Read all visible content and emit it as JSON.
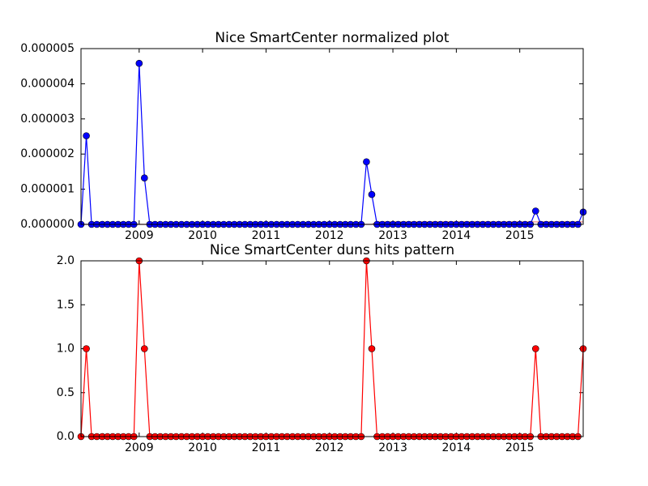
{
  "chart_data": [
    {
      "type": "line",
      "title": "Nice SmartCenter normalized plot",
      "x": [
        2008.083,
        2008.167,
        2008.25,
        2008.333,
        2008.417,
        2008.5,
        2008.583,
        2008.667,
        2008.75,
        2008.833,
        2008.917,
        2009.0,
        2009.083,
        2009.167,
        2009.25,
        2009.333,
        2009.417,
        2009.5,
        2009.583,
        2009.667,
        2009.75,
        2009.833,
        2009.917,
        2010.0,
        2010.083,
        2010.167,
        2010.25,
        2010.333,
        2010.417,
        2010.5,
        2010.583,
        2010.667,
        2010.75,
        2010.833,
        2010.917,
        2011.0,
        2011.083,
        2011.167,
        2011.25,
        2011.333,
        2011.417,
        2011.5,
        2011.583,
        2011.667,
        2011.75,
        2011.833,
        2011.917,
        2012.0,
        2012.083,
        2012.167,
        2012.25,
        2012.333,
        2012.417,
        2012.5,
        2012.583,
        2012.667,
        2012.75,
        2012.833,
        2012.917,
        2013.0,
        2013.083,
        2013.167,
        2013.25,
        2013.333,
        2013.417,
        2013.5,
        2013.583,
        2013.667,
        2013.75,
        2013.833,
        2013.917,
        2014.0,
        2014.083,
        2014.167,
        2014.25,
        2014.333,
        2014.417,
        2014.5,
        2014.583,
        2014.667,
        2014.75,
        2014.833,
        2014.917,
        2015.0,
        2015.083,
        2015.167,
        2015.25,
        2015.333,
        2015.417,
        2015.5,
        2015.583,
        2015.667,
        2015.75,
        2015.833,
        2015.917,
        2016.0
      ],
      "series": [
        {
          "color": "#e87a7a",
          "marker": false,
          "values": [
            0,
            0,
            0,
            0,
            0,
            0,
            0,
            0,
            0,
            0,
            0,
            0,
            0,
            0,
            0,
            0,
            0,
            0,
            0,
            0,
            0,
            0,
            0,
            0,
            0,
            0,
            0,
            0,
            0,
            0,
            0,
            0,
            0,
            0,
            0,
            0,
            0,
            0,
            0,
            0,
            0,
            0,
            0,
            0,
            0,
            0,
            0,
            0,
            0,
            0,
            0,
            0,
            0,
            0,
            0,
            0,
            7e-08,
            7e-08,
            7e-08,
            7e-08,
            7e-08,
            7e-08,
            7e-08,
            7e-08,
            7e-08,
            7e-08,
            7e-08,
            7e-08,
            7e-08,
            7e-08,
            7e-08,
            7e-08,
            7e-08,
            7e-08,
            7e-08,
            7e-08,
            7e-08,
            7e-08,
            7e-08,
            7e-08,
            7e-08,
            7e-08,
            7e-08,
            7e-08,
            7e-08,
            7e-08,
            7e-08,
            7e-08,
            7e-08,
            7e-08,
            7e-08,
            7e-08,
            7e-08,
            7e-08,
            7e-08,
            7e-08
          ]
        },
        {
          "color": "#0000ff",
          "marker": true,
          "values": [
            0,
            2.52e-06,
            0,
            0,
            0,
            0,
            0,
            0,
            0,
            0,
            0,
            4.58e-06,
            1.32e-06,
            0,
            0,
            0,
            0,
            0,
            0,
            0,
            0,
            0,
            0,
            0,
            0,
            0,
            0,
            0,
            0,
            0,
            0,
            0,
            0,
            0,
            0,
            0,
            0,
            0,
            0,
            0,
            0,
            0,
            0,
            0,
            0,
            0,
            0,
            0,
            0,
            0,
            0,
            0,
            0,
            0,
            1.78e-06,
            8.5e-07,
            0,
            0,
            0,
            0,
            0,
            0,
            0,
            0,
            0,
            0,
            0,
            0,
            0,
            0,
            0,
            0,
            0,
            0,
            0,
            0,
            0,
            0,
            0,
            0,
            0,
            0,
            0,
            0,
            0,
            0,
            3.8e-07,
            0,
            0,
            0,
            0,
            0,
            0,
            0,
            0,
            3.5e-07
          ]
        }
      ],
      "xlim": [
        2008.083,
        2016.0
      ],
      "xticks": [
        2009,
        2010,
        2011,
        2012,
        2013,
        2014,
        2015
      ],
      "ylim": [
        0,
        5e-06
      ],
      "yticks": [
        {
          "value": 0,
          "label": "0.000000"
        },
        {
          "value": 1e-06,
          "label": "0.000001"
        },
        {
          "value": 2e-06,
          "label": "0.000002"
        },
        {
          "value": 3e-06,
          "label": "0.000003"
        },
        {
          "value": 4e-06,
          "label": "0.000004"
        },
        {
          "value": 5e-06,
          "label": "0.000005"
        }
      ]
    },
    {
      "type": "line",
      "title": "Nice SmartCenter duns hits pattern",
      "x": [
        2008.083,
        2008.167,
        2008.25,
        2008.333,
        2008.417,
        2008.5,
        2008.583,
        2008.667,
        2008.75,
        2008.833,
        2008.917,
        2009.0,
        2009.083,
        2009.167,
        2009.25,
        2009.333,
        2009.417,
        2009.5,
        2009.583,
        2009.667,
        2009.75,
        2009.833,
        2009.917,
        2010.0,
        2010.083,
        2010.167,
        2010.25,
        2010.333,
        2010.417,
        2010.5,
        2010.583,
        2010.667,
        2010.75,
        2010.833,
        2010.917,
        2011.0,
        2011.083,
        2011.167,
        2011.25,
        2011.333,
        2011.417,
        2011.5,
        2011.583,
        2011.667,
        2011.75,
        2011.833,
        2011.917,
        2012.0,
        2012.083,
        2012.167,
        2012.25,
        2012.333,
        2012.417,
        2012.5,
        2012.583,
        2012.667,
        2012.75,
        2012.833,
        2012.917,
        2013.0,
        2013.083,
        2013.167,
        2013.25,
        2013.333,
        2013.417,
        2013.5,
        2013.583,
        2013.667,
        2013.75,
        2013.833,
        2013.917,
        2014.0,
        2014.083,
        2014.167,
        2014.25,
        2014.333,
        2014.417,
        2014.5,
        2014.583,
        2014.667,
        2014.75,
        2014.833,
        2014.917,
        2015.0,
        2015.083,
        2015.167,
        2015.25,
        2015.333,
        2015.417,
        2015.5,
        2015.583,
        2015.667,
        2015.75,
        2015.833,
        2015.917,
        2016.0
      ],
      "series": [
        {
          "color": "#ff0000",
          "marker": true,
          "values": [
            0,
            1,
            0,
            0,
            0,
            0,
            0,
            0,
            0,
            0,
            0,
            2,
            1,
            0,
            0,
            0,
            0,
            0,
            0,
            0,
            0,
            0,
            0,
            0,
            0,
            0,
            0,
            0,
            0,
            0,
            0,
            0,
            0,
            0,
            0,
            0,
            0,
            0,
            0,
            0,
            0,
            0,
            0,
            0,
            0,
            0,
            0,
            0,
            0,
            0,
            0,
            0,
            0,
            0,
            2,
            1,
            0,
            0,
            0,
            0,
            0,
            0,
            0,
            0,
            0,
            0,
            0,
            0,
            0,
            0,
            0,
            0,
            0,
            0,
            0,
            0,
            0,
            0,
            0,
            0,
            0,
            0,
            0,
            0,
            0,
            0,
            1,
            0,
            0,
            0,
            0,
            0,
            0,
            0,
            0,
            1
          ]
        }
      ],
      "xlim": [
        2008.083,
        2016.0
      ],
      "xticks": [
        2009,
        2010,
        2011,
        2012,
        2013,
        2014,
        2015
      ],
      "ylim": [
        0,
        2
      ],
      "yticks": [
        {
          "value": 0,
          "label": "0.0"
        },
        {
          "value": 0.5,
          "label": "0.5"
        },
        {
          "value": 1,
          "label": "1.0"
        },
        {
          "value": 1.5,
          "label": "1.5"
        },
        {
          "value": 2,
          "label": "2.0"
        }
      ]
    }
  ]
}
